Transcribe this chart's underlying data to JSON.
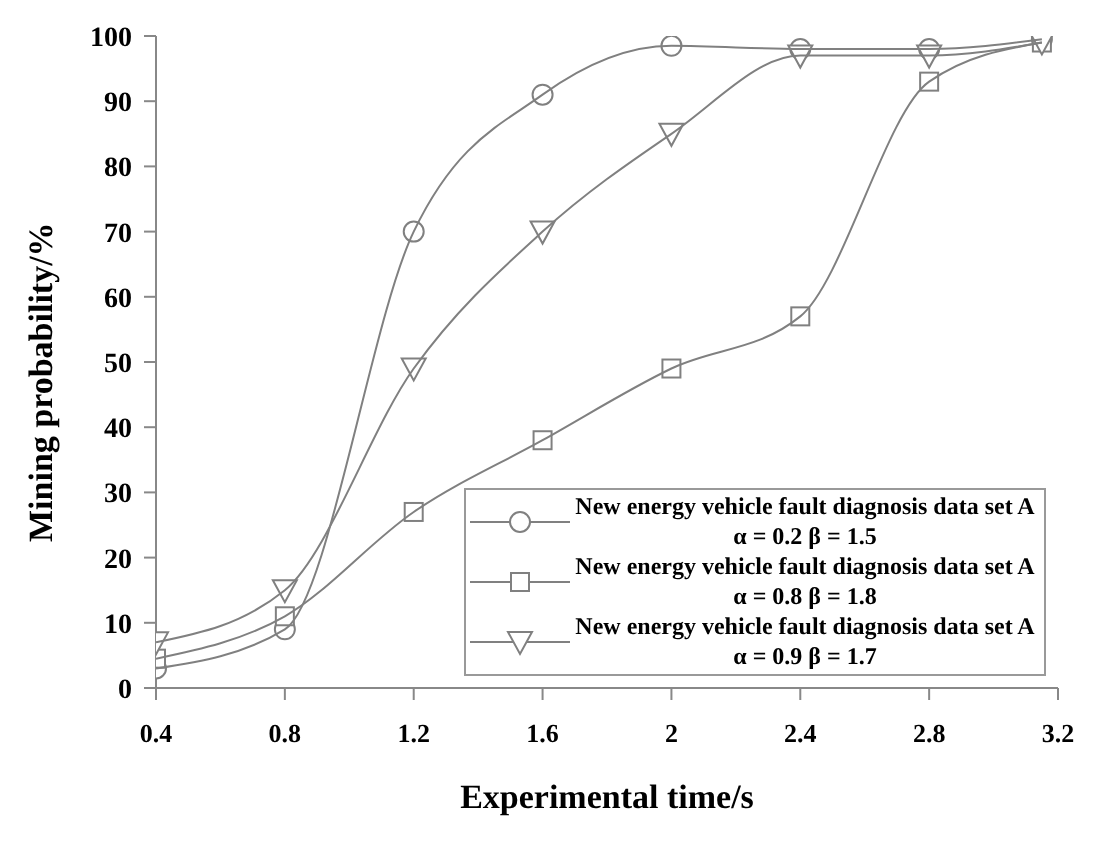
{
  "chart_data": {
    "type": "line",
    "xlabel": "Experimental time/s",
    "ylabel": "Mining probability/%",
    "x": [
      0.4,
      0.8,
      1.2,
      1.6,
      2.0,
      2.4,
      2.8,
      3.15
    ],
    "series": [
      {
        "name": "New energy vehicle fault diagnosis data set A α = 0.2 β = 1.5",
        "color": "#808080",
        "marker": "circle",
        "values": [
          3,
          9,
          70,
          91,
          98.5,
          98,
          98,
          99.5
        ]
      },
      {
        "name": "New energy vehicle fault diagnosis data set A α = 0.8 β = 1.8",
        "color": "#808080",
        "marker": "square",
        "values": [
          4.5,
          11,
          27,
          38,
          49,
          57,
          93,
          99
        ]
      },
      {
        "name": "New energy vehicle fault diagnosis data set A α = 0.9 β = 1.7",
        "color": "#808080",
        "marker": "triangle",
        "values": [
          7,
          15,
          49,
          70,
          85,
          97,
          97,
          99
        ]
      }
    ],
    "xlim": [
      0.4,
      3.2
    ],
    "xticks": [
      0.4,
      0.8,
      1.2,
      1.6,
      2.0,
      2.4,
      2.8,
      3.2
    ],
    "ylim": [
      0,
      100
    ],
    "yticks": [
      0,
      10,
      20,
      30,
      40,
      50,
      60,
      70,
      80,
      90,
      100
    ],
    "grid": false,
    "legend": "bottom right",
    "line_style": "solid"
  }
}
